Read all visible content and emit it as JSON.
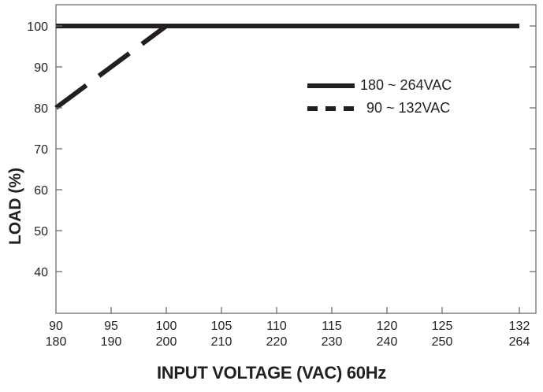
{
  "chart_data": {
    "type": "line",
    "title": "",
    "xlabel": "INPUT VOLTAGE (VAC) 60Hz",
    "ylabel": "LOAD (%)",
    "x_ticks_primary": [
      "90",
      "95",
      "100",
      "105",
      "110",
      "115",
      "120",
      "125",
      "132"
    ],
    "x_ticks_secondary": [
      "180",
      "190",
      "200",
      "210",
      "220",
      "230",
      "240",
      "250",
      "264"
    ],
    "y_ticks": [
      "100",
      "90",
      "80",
      "70",
      "60",
      "50",
      "40"
    ],
    "ylim": [
      35,
      105
    ],
    "xlim": [
      90,
      136
    ],
    "grid": false,
    "legend_position": "upper right",
    "series": [
      {
        "name": "180 ~ 264VAC",
        "style": "solid",
        "x": [
          90,
          132
        ],
        "y": [
          100,
          100
        ]
      },
      {
        "name": "90 ~ 132VAC",
        "style": "dashed",
        "x": [
          90,
          100,
          132
        ],
        "y": [
          80,
          100,
          100
        ]
      }
    ]
  },
  "legend": {
    "solid_label": "180 ~ 264VAC",
    "dashed_label": "90 ~ 132VAC"
  },
  "axes": {
    "xlabel": "INPUT VOLTAGE (VAC) 60Hz",
    "ylabel": "LOAD (%)"
  },
  "colors": {
    "line": "#231f20",
    "axis": "#6d6e70"
  }
}
